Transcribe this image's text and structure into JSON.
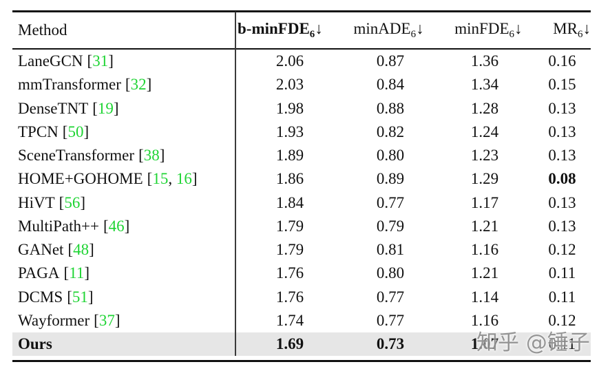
{
  "header": {
    "method_label": "Method",
    "columns": [
      {
        "name": "b-minFDE",
        "sub": "6",
        "arrow": "↓",
        "bold": true
      },
      {
        "name": "minADE",
        "sub": "6",
        "arrow": "↓",
        "bold": false
      },
      {
        "name": "minFDE",
        "sub": "6",
        "arrow": "↓",
        "bold": false
      },
      {
        "name": "MR",
        "sub": "6",
        "arrow": "↓",
        "bold": false
      }
    ]
  },
  "format": {
    "citation_open": "[",
    "citation_close": "]",
    "citation_separator": ", "
  },
  "rows": [
    {
      "method": "LaneGCN",
      "citations": [
        "31"
      ],
      "values": [
        "2.06",
        "0.87",
        "1.36",
        "0.16"
      ],
      "bold_values": [
        false,
        false,
        false,
        false
      ],
      "bold_method": false,
      "highlight": false
    },
    {
      "method": "mmTransformer",
      "citations": [
        "32"
      ],
      "values": [
        "2.03",
        "0.84",
        "1.34",
        "0.15"
      ],
      "bold_values": [
        false,
        false,
        false,
        false
      ],
      "bold_method": false,
      "highlight": false
    },
    {
      "method": "DenseTNT",
      "citations": [
        "19"
      ],
      "values": [
        "1.98",
        "0.88",
        "1.28",
        "0.13"
      ],
      "bold_values": [
        false,
        false,
        false,
        false
      ],
      "bold_method": false,
      "highlight": false
    },
    {
      "method": "TPCN",
      "citations": [
        "50"
      ],
      "values": [
        "1.93",
        "0.82",
        "1.24",
        "0.13"
      ],
      "bold_values": [
        false,
        false,
        false,
        false
      ],
      "bold_method": false,
      "highlight": false
    },
    {
      "method": "SceneTransformer",
      "citations": [
        "38"
      ],
      "values": [
        "1.89",
        "0.80",
        "1.23",
        "0.13"
      ],
      "bold_values": [
        false,
        false,
        false,
        false
      ],
      "bold_method": false,
      "highlight": false
    },
    {
      "method": "HOME+GOHOME",
      "citations": [
        "15",
        "16"
      ],
      "values": [
        "1.86",
        "0.89",
        "1.29",
        "0.08"
      ],
      "bold_values": [
        false,
        false,
        false,
        true
      ],
      "bold_method": false,
      "highlight": false
    },
    {
      "method": "HiVT",
      "citations": [
        "56"
      ],
      "values": [
        "1.84",
        "0.77",
        "1.17",
        "0.13"
      ],
      "bold_values": [
        false,
        false,
        false,
        false
      ],
      "bold_method": false,
      "highlight": false
    },
    {
      "method": "MultiPath++",
      "citations": [
        "46"
      ],
      "values": [
        "1.79",
        "0.79",
        "1.21",
        "0.13"
      ],
      "bold_values": [
        false,
        false,
        false,
        false
      ],
      "bold_method": false,
      "highlight": false
    },
    {
      "method": "GANet",
      "citations": [
        "48"
      ],
      "values": [
        "1.79",
        "0.81",
        "1.16",
        "0.12"
      ],
      "bold_values": [
        false,
        false,
        false,
        false
      ],
      "bold_method": false,
      "highlight": false
    },
    {
      "method": "PAGA",
      "citations": [
        "11"
      ],
      "values": [
        "1.76",
        "0.80",
        "1.21",
        "0.11"
      ],
      "bold_values": [
        false,
        false,
        false,
        false
      ],
      "bold_method": false,
      "highlight": false
    },
    {
      "method": "DCMS",
      "citations": [
        "51"
      ],
      "values": [
        "1.76",
        "0.77",
        "1.14",
        "0.11"
      ],
      "bold_values": [
        false,
        false,
        false,
        false
      ],
      "bold_method": false,
      "highlight": false
    },
    {
      "method": "Wayformer",
      "citations": [
        "37"
      ],
      "values": [
        "1.74",
        "0.77",
        "1.16",
        "0.12"
      ],
      "bold_values": [
        false,
        false,
        false,
        false
      ],
      "bold_method": false,
      "highlight": false
    },
    {
      "method": "Ours",
      "citations": [],
      "values": [
        "1.69",
        "0.73",
        "1.07",
        "0.11"
      ],
      "bold_values": [
        true,
        true,
        true,
        false
      ],
      "bold_method": true,
      "highlight": true
    }
  ],
  "watermark": {
    "text": "知乎 @锤子"
  },
  "colors": {
    "citation_green": "#1ed433",
    "highlight_gray": "#e6e6e6",
    "watermark_gray": "#8f8f8f",
    "rule_black": "#111111"
  }
}
